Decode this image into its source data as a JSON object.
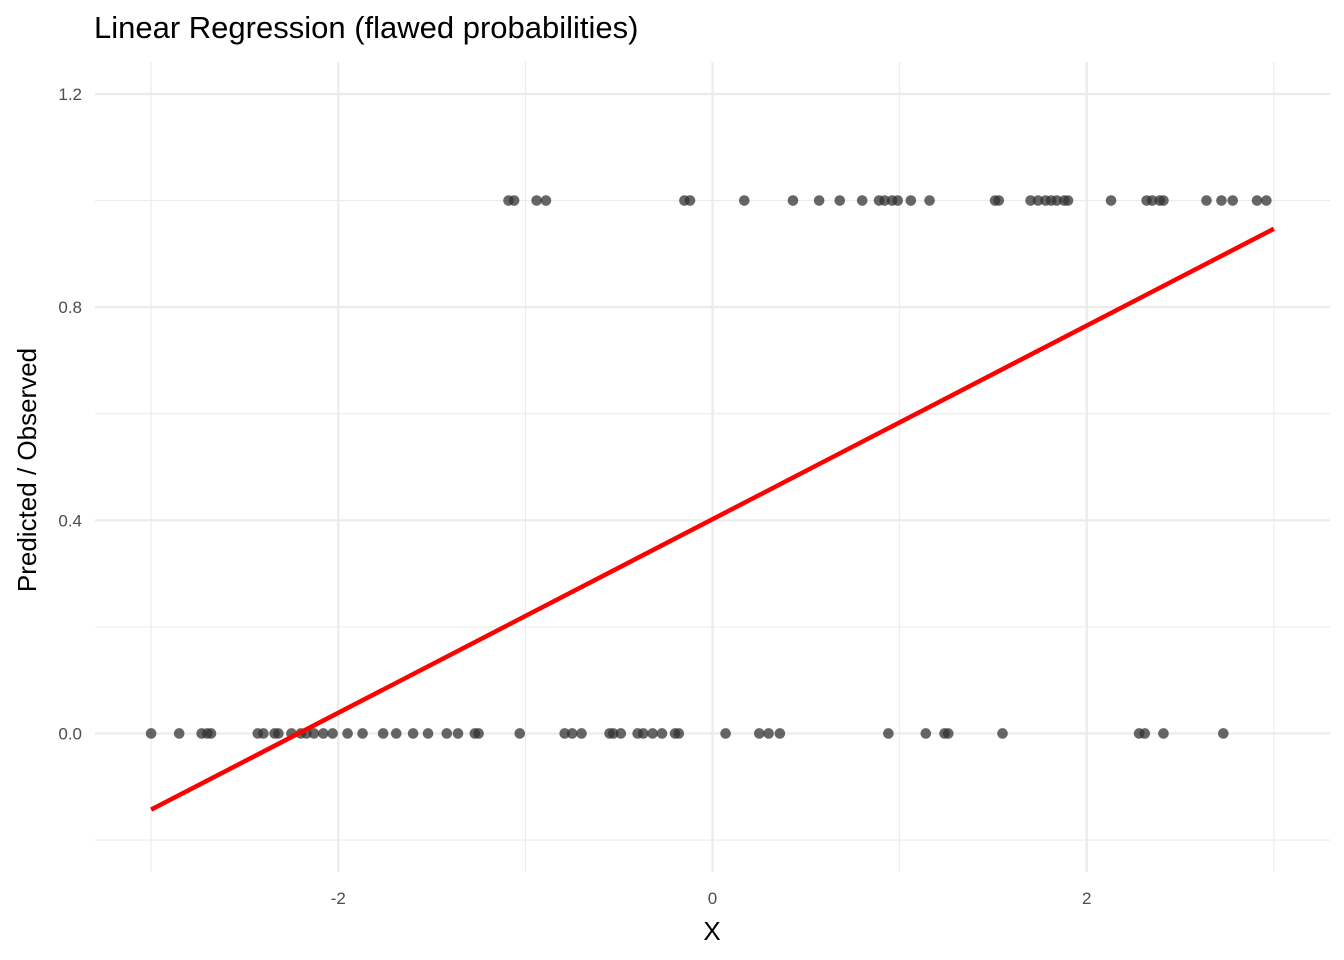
{
  "chart_data": {
    "type": "scatter",
    "title": "Linear Regression (flawed probabilities)",
    "xlabel": "X",
    "ylabel": "Predicted / Observed",
    "xlim": [
      -3.3,
      3.3
    ],
    "ylim": [
      -0.26,
      1.26
    ],
    "x_ticks": [
      -2,
      0,
      2
    ],
    "x_tick_labels": [
      "-2",
      "0",
      "2"
    ],
    "y_ticks": [
      0.0,
      0.4,
      0.8,
      1.2
    ],
    "y_tick_labels": [
      "0.0",
      "0.4",
      "0.8",
      "1.2"
    ],
    "grid": true,
    "legend": "none",
    "colors": {
      "points": "#333333",
      "line": "#ff0000",
      "grid": "#ebebeb"
    },
    "series": [
      {
        "type": "scatter",
        "points": [
          [
            -3.0,
            0
          ],
          [
            -2.85,
            0
          ],
          [
            -2.73,
            0
          ],
          [
            -2.7,
            0
          ],
          [
            -2.68,
            0
          ],
          [
            -2.43,
            0
          ],
          [
            -2.4,
            0
          ],
          [
            -2.34,
            0
          ],
          [
            -2.32,
            0
          ],
          [
            -2.25,
            0
          ],
          [
            -2.2,
            0
          ],
          [
            -2.17,
            0
          ],
          [
            -2.13,
            0
          ],
          [
            -2.08,
            0
          ],
          [
            -2.03,
            0
          ],
          [
            -1.95,
            0
          ],
          [
            -1.87,
            0
          ],
          [
            -1.76,
            0
          ],
          [
            -1.69,
            0
          ],
          [
            -1.6,
            0
          ],
          [
            -1.52,
            0
          ],
          [
            -1.42,
            0
          ],
          [
            -1.36,
            0
          ],
          [
            -1.27,
            0
          ],
          [
            -1.25,
            0
          ],
          [
            -1.03,
            0
          ],
          [
            -0.79,
            0
          ],
          [
            -0.75,
            0
          ],
          [
            -0.7,
            0
          ],
          [
            -0.55,
            0
          ],
          [
            -0.53,
            0
          ],
          [
            -0.49,
            0
          ],
          [
            -0.4,
            0
          ],
          [
            -0.37,
            0
          ],
          [
            -0.32,
            0
          ],
          [
            -0.27,
            0
          ],
          [
            -0.2,
            0
          ],
          [
            -0.18,
            0
          ],
          [
            0.07,
            0
          ],
          [
            0.25,
            0
          ],
          [
            0.3,
            0
          ],
          [
            0.36,
            0
          ],
          [
            0.94,
            0
          ],
          [
            1.14,
            0
          ],
          [
            1.24,
            0
          ],
          [
            1.26,
            0
          ],
          [
            1.55,
            0
          ],
          [
            2.28,
            0
          ],
          [
            2.31,
            0
          ],
          [
            2.41,
            0
          ],
          [
            2.73,
            0
          ],
          [
            -1.09,
            1
          ],
          [
            -1.06,
            1
          ],
          [
            -0.94,
            1
          ],
          [
            -0.89,
            1
          ],
          [
            -0.15,
            1
          ],
          [
            -0.12,
            1
          ],
          [
            0.17,
            1
          ],
          [
            0.43,
            1
          ],
          [
            0.57,
            1
          ],
          [
            0.68,
            1
          ],
          [
            0.8,
            1
          ],
          [
            0.89,
            1
          ],
          [
            0.92,
            1
          ],
          [
            0.96,
            1
          ],
          [
            0.99,
            1
          ],
          [
            1.06,
            1
          ],
          [
            1.16,
            1
          ],
          [
            1.51,
            1
          ],
          [
            1.53,
            1
          ],
          [
            1.7,
            1
          ],
          [
            1.74,
            1
          ],
          [
            1.78,
            1
          ],
          [
            1.81,
            1
          ],
          [
            1.84,
            1
          ],
          [
            1.88,
            1
          ],
          [
            1.9,
            1
          ],
          [
            2.13,
            1
          ],
          [
            2.32,
            1
          ],
          [
            2.35,
            1
          ],
          [
            2.39,
            1
          ],
          [
            2.41,
            1
          ],
          [
            2.64,
            1
          ],
          [
            2.72,
            1
          ],
          [
            2.78,
            1
          ],
          [
            2.91,
            1
          ],
          [
            2.96,
            1
          ]
        ]
      },
      {
        "type": "line",
        "x": [
          -3.0,
          3.0
        ],
        "y": [
          -0.143,
          0.947
        ]
      }
    ]
  }
}
